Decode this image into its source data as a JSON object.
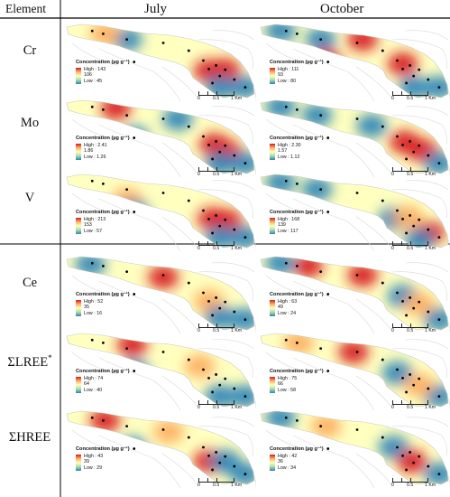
{
  "header": {
    "element": "Element",
    "july": "July",
    "october": "October"
  },
  "rows": [
    {
      "element": "Cr",
      "sup": "",
      "july": {
        "title": "Concentration (µg g⁻¹)",
        "high": "High : 143",
        "mid": "106",
        "low": "Low : 45"
      },
      "october": {
        "title": "Concentration (µg g⁻¹)",
        "high": "High : 111",
        "mid": "93",
        "low": "Low : 80"
      }
    },
    {
      "element": "Mo",
      "sup": "",
      "july": {
        "title": "Concentration (µg g⁻¹)",
        "high": "High : 2.41",
        "mid": "1.86",
        "low": "Low : 1.26"
      },
      "october": {
        "title": "Concentration (µg g⁻¹)",
        "high": "High : 2.30",
        "mid": "1.57",
        "low": "Low : 1.12"
      }
    },
    {
      "element": "V",
      "sup": "",
      "july": {
        "title": "Concentration (µg g⁻¹)",
        "high": "High : 213",
        "mid": "153",
        "low": "Low : 57"
      },
      "october": {
        "title": "Concentration (µg g⁻¹)",
        "high": "High : 168",
        "mid": "139",
        "low": "Low : 117"
      }
    },
    {
      "element": "Ce",
      "sup": "",
      "july": {
        "title": "Concentration (µg g⁻¹)",
        "high": "High : 52",
        "mid": "35",
        "low": "Low : 16"
      },
      "october": {
        "title": "Concentration (µg g⁻¹)",
        "high": "High : 63",
        "mid": "49",
        "low": "Low : 24"
      }
    },
    {
      "element": "ΣLREE",
      "sup": "*",
      "july": {
        "title": "Concentration (µg g⁻¹)",
        "high": "High : 74",
        "mid": "64",
        "low": "Low : 40"
      },
      "october": {
        "title": "Concentration (µg g⁻¹)",
        "high": "High : 75",
        "mid": "66",
        "low": "Low : 58"
      }
    },
    {
      "element": "ΣHREE",
      "sup": "",
      "july": {
        "title": "Concentration (µg g⁻¹)",
        "high": "High : 43",
        "mid": "39",
        "low": "Low : 29"
      },
      "october": {
        "title": "Concentration (µg g⁻¹)",
        "high": "High : 42",
        "mid": "36",
        "low": "Low : 34"
      }
    }
  ],
  "scalebar": {
    "zero": "0",
    "half": "0.5",
    "one": "1 Km"
  },
  "colors": {
    "high": "#d7191c",
    "mid_high": "#fdae61",
    "mid": "#ffffbf",
    "mid_low": "#abdda4",
    "low": "#2b83ba",
    "sample_point": "#000000"
  },
  "sample_points": [
    [
      0.13,
      0.08
    ],
    [
      0.19,
      0.12
    ],
    [
      0.32,
      0.2
    ],
    [
      0.36,
      0.52
    ],
    [
      0.52,
      0.25
    ],
    [
      0.66,
      0.36
    ],
    [
      0.74,
      0.5
    ],
    [
      0.77,
      0.62
    ],
    [
      0.81,
      0.57
    ],
    [
      0.86,
      0.63
    ],
    [
      0.79,
      0.82
    ],
    [
      0.83,
      0.72
    ],
    [
      0.91,
      0.77
    ],
    [
      0.97,
      0.88
    ]
  ],
  "hotspots": {
    "Cr_july": [
      [
        0.77,
        0.65,
        "high"
      ],
      [
        0.86,
        0.64,
        "high"
      ],
      [
        0.32,
        0.2,
        "low"
      ],
      [
        0.83,
        0.88,
        "low"
      ],
      [
        0.97,
        0.88,
        "low"
      ],
      [
        0.2,
        0.12,
        "mid_high"
      ]
    ],
    "Cr_october": [
      [
        0.32,
        0.2,
        "low"
      ],
      [
        0.55,
        0.2,
        "high"
      ],
      [
        0.77,
        0.55,
        "high"
      ],
      [
        0.1,
        0.08,
        "low"
      ],
      [
        0.35,
        0.5,
        "high"
      ],
      [
        0.97,
        0.88,
        "low"
      ],
      [
        0.83,
        0.88,
        "low"
      ]
    ],
    "Mo_july": [
      [
        0.26,
        0.1,
        "high"
      ],
      [
        0.8,
        0.62,
        "high"
      ],
      [
        0.87,
        0.72,
        "high"
      ],
      [
        0.6,
        0.25,
        "low"
      ],
      [
        0.83,
        0.88,
        "low"
      ],
      [
        0.36,
        0.52,
        "low"
      ],
      [
        0.97,
        0.88,
        "low"
      ]
    ],
    "Mo_october": [
      [
        0.3,
        0.2,
        "low"
      ],
      [
        0.78,
        0.58,
        "high"
      ],
      [
        0.88,
        0.7,
        "high"
      ],
      [
        0.6,
        0.35,
        "low"
      ],
      [
        0.97,
        0.88,
        "low"
      ],
      [
        0.1,
        0.08,
        "low"
      ]
    ],
    "V_july": [
      [
        0.32,
        0.35,
        "mid_high"
      ],
      [
        0.79,
        0.62,
        "high"
      ],
      [
        0.87,
        0.65,
        "high"
      ],
      [
        0.36,
        0.52,
        "low"
      ],
      [
        0.83,
        0.88,
        "low"
      ],
      [
        0.97,
        0.88,
        "low"
      ]
    ],
    "V_october": [
      [
        0.1,
        0.1,
        "low"
      ],
      [
        0.72,
        0.62,
        "low"
      ],
      [
        0.92,
        0.82,
        "high"
      ],
      [
        0.8,
        0.6,
        "mid_high"
      ],
      [
        0.86,
        0.92,
        "low"
      ],
      [
        0.3,
        0.2,
        "low"
      ]
    ],
    "Ce_july": [
      [
        0.52,
        0.28,
        "high"
      ],
      [
        0.12,
        0.1,
        "low"
      ],
      [
        0.77,
        0.62,
        "mid_high"
      ],
      [
        0.83,
        0.85,
        "low"
      ],
      [
        0.97,
        0.88,
        "low"
      ]
    ],
    "Ce_october": [
      [
        0.25,
        0.12,
        "high"
      ],
      [
        0.55,
        0.25,
        "high"
      ],
      [
        0.77,
        0.55,
        "low"
      ],
      [
        0.97,
        0.88,
        "low"
      ],
      [
        0.1,
        0.08,
        "low"
      ],
      [
        0.86,
        0.66,
        "mid_high"
      ]
    ],
    "LREE_july": [
      [
        0.35,
        0.15,
        "high"
      ],
      [
        0.72,
        0.45,
        "mid_high"
      ],
      [
        0.83,
        0.88,
        "low"
      ],
      [
        0.36,
        0.52,
        "low"
      ],
      [
        0.97,
        0.88,
        "low"
      ]
    ],
    "LREE_october": [
      [
        0.5,
        0.25,
        "high"
      ],
      [
        0.2,
        0.12,
        "mid_high"
      ],
      [
        0.74,
        0.55,
        "low"
      ],
      [
        0.97,
        0.88,
        "low"
      ],
      [
        0.86,
        0.72,
        "mid_high"
      ]
    ],
    "HREE_july": [
      [
        0.2,
        0.12,
        "high"
      ],
      [
        0.35,
        0.52,
        "low"
      ],
      [
        0.77,
        0.7,
        "high"
      ],
      [
        0.86,
        0.7,
        "low"
      ],
      [
        0.97,
        0.88,
        "low"
      ],
      [
        0.55,
        0.28,
        "mid_high"
      ]
    ],
    "HREE_october": [
      [
        0.1,
        0.08,
        "low"
      ],
      [
        0.72,
        0.5,
        "low"
      ],
      [
        0.82,
        0.7,
        "high"
      ],
      [
        0.97,
        0.88,
        "low"
      ],
      [
        0.35,
        0.2,
        "mid_high"
      ]
    ]
  }
}
